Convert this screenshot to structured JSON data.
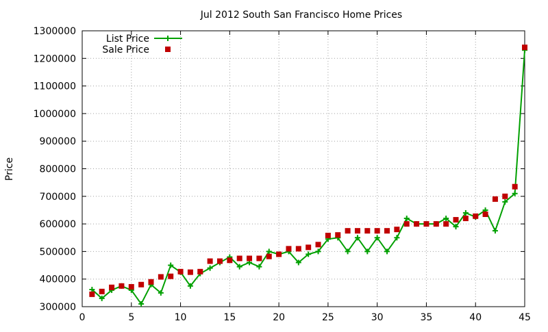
{
  "chart_data": {
    "type": "line",
    "title": "Jul 2012 South San Francisco Home Prices",
    "xlabel": "",
    "ylabel": "Price",
    "xlim": [
      0,
      45
    ],
    "ylim": [
      300000,
      1300000
    ],
    "x_ticks": [
      "0",
      "5",
      "10",
      "15",
      "20",
      "25",
      "30",
      "35",
      "40",
      "45"
    ],
    "y_ticks": [
      "300000",
      "400000",
      "500000",
      "600000",
      "700000",
      "800000",
      "900000",
      "1000000",
      "1100000",
      "1200000",
      "1300000"
    ],
    "grid": true,
    "legend_position": "top-left",
    "x": [
      1,
      2,
      3,
      4,
      5,
      6,
      7,
      8,
      9,
      10,
      11,
      12,
      13,
      14,
      15,
      16,
      17,
      18,
      19,
      20,
      21,
      22,
      23,
      24,
      25,
      26,
      27,
      28,
      29,
      30,
      31,
      32,
      33,
      34,
      35,
      36,
      37,
      38,
      39,
      40,
      41,
      42,
      43,
      44,
      45
    ],
    "series": [
      {
        "name": "List Price",
        "style": "line-with-plus-markers",
        "color": "#00a000",
        "values": [
          362000,
          330000,
          360000,
          375000,
          360000,
          310000,
          380000,
          350000,
          450000,
          425000,
          375000,
          420000,
          440000,
          460000,
          480000,
          445000,
          460000,
          445000,
          500000,
          490000,
          500000,
          460000,
          490000,
          500000,
          545000,
          550000,
          500000,
          550000,
          500000,
          550000,
          500000,
          550000,
          620000,
          600000,
          600000,
          600000,
          620000,
          590000,
          640000,
          625000,
          650000,
          575000,
          680000,
          710000,
          1230000
        ]
      },
      {
        "name": "Sale Price",
        "style": "square-markers",
        "color": "#c00000",
        "values": [
          345000,
          355000,
          370000,
          375000,
          372000,
          380000,
          390000,
          408000,
          410000,
          427000,
          425000,
          427000,
          465000,
          465000,
          468000,
          475000,
          475000,
          475000,
          482000,
          490000,
          510000,
          510000,
          515000,
          525000,
          558000,
          560000,
          575000,
          575000,
          575000,
          575000,
          575000,
          580000,
          600000,
          600000,
          600000,
          600000,
          600000,
          615000,
          620000,
          628000,
          635000,
          690000,
          700000,
          735000,
          1240000
        ]
      }
    ]
  }
}
